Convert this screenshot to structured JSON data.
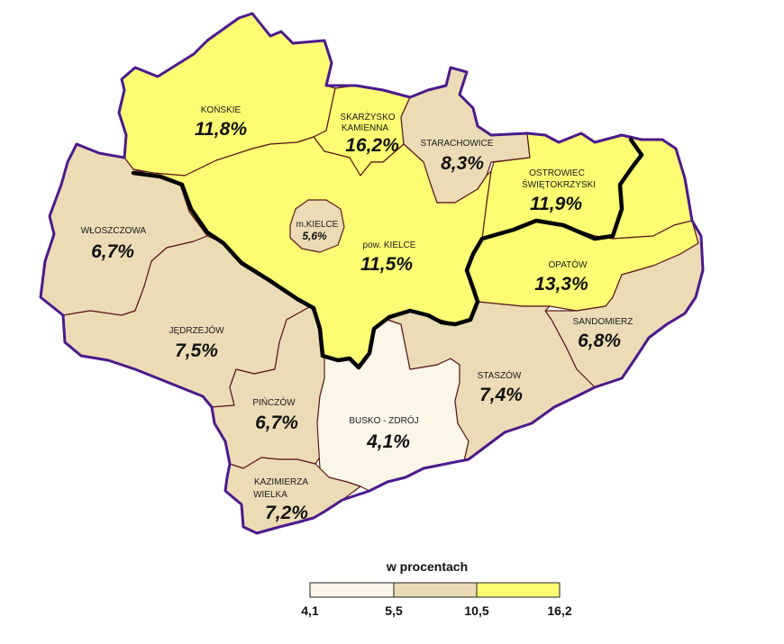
{
  "legend": {
    "title": "w procentach",
    "ticks": [
      "4,1",
      "5,5",
      "10,5",
      "16,2"
    ],
    "colors": [
      "#fbf6e8",
      "#ecdcb5",
      "#fdfd73"
    ]
  },
  "colors": {
    "outer_border": "#4b1a8c",
    "district_border": "#5a1a1a",
    "thick_line": "#000000"
  },
  "districts": [
    {
      "id": "konskie",
      "name": "KOŃSKIE",
      "value": "11,8%",
      "class": 3
    },
    {
      "id": "skarzysko",
      "name_lines": [
        "SKARŻYSKO",
        "KAMIENNA"
      ],
      "value": "16,2%",
      "class": 3
    },
    {
      "id": "starachowice",
      "name": "STARACHOWICE",
      "value": "8,3%",
      "class": 2
    },
    {
      "id": "ostrowiec",
      "name_lines": [
        "OSTROWIEC",
        "ŚWIĘTOKRZYSKI"
      ],
      "value": "11,9%",
      "class": 3
    },
    {
      "id": "wloszczowa",
      "name": "WŁOSZCZOWA",
      "value": "6,7%",
      "class": 2
    },
    {
      "id": "kielce-city",
      "name": "m.KIELCE",
      "value": "5,6%",
      "class": 2
    },
    {
      "id": "kielce-pow",
      "name": "pow. KIELCE",
      "value": "11,5%",
      "class": 3
    },
    {
      "id": "opatow",
      "name": "OPATÓW",
      "value": "13,3%",
      "class": 3
    },
    {
      "id": "jedrzejow",
      "name": "JĘDRZEJÓW",
      "value": "7,5%",
      "class": 2
    },
    {
      "id": "sandomierz",
      "name": "SANDOMIERZ",
      "value": "6,8%",
      "class": 2
    },
    {
      "id": "staszow",
      "name": "STASZÓW",
      "value": "7,4%",
      "class": 2
    },
    {
      "id": "pinczow",
      "name": "PIŃCZÓW",
      "value": "6,7%",
      "class": 2
    },
    {
      "id": "busko",
      "name": "BUSKO - ZDRÓJ",
      "value": "4,1%",
      "class": 1
    },
    {
      "id": "kazimierza",
      "name_lines": [
        "KAZIMIERZA",
        "WIELKA"
      ],
      "value": "7,2%",
      "class": 2
    }
  ]
}
